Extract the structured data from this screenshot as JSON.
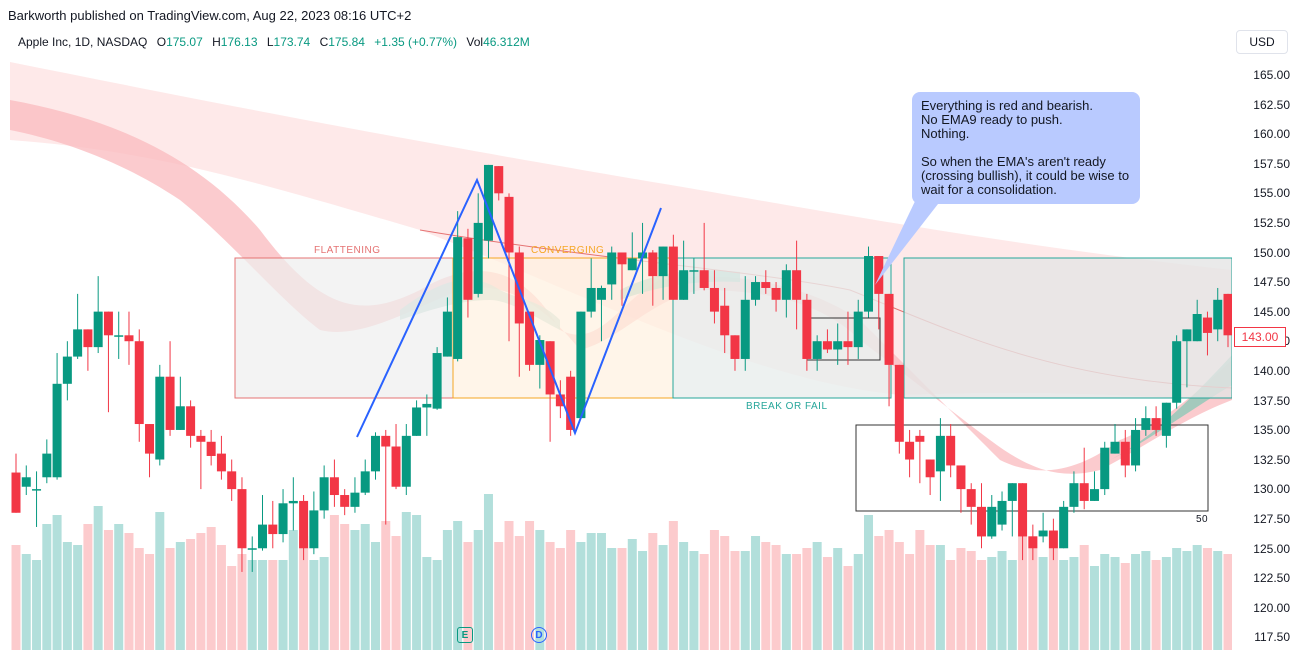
{
  "header": {
    "publisher": "Barkworth published on TradingView.com, Aug 22, 2023 08:16 UTC+2"
  },
  "symbol": {
    "name": "Apple Inc, 1D, NASDAQ",
    "open_label": "O",
    "open": "175.07",
    "high_label": "H",
    "high": "176.13",
    "low_label": "L",
    "low": "173.74",
    "close_label": "C",
    "close": "175.84",
    "change": "+1.35 (+0.77%)",
    "vol_label": "Vol",
    "vol": "46.312M"
  },
  "currency": "USD",
  "price_axis": {
    "ticks": [
      "165.00",
      "162.50",
      "160.00",
      "157.50",
      "155.00",
      "152.50",
      "150.00",
      "147.50",
      "145.00",
      "142.50",
      "140.00",
      "137.50",
      "135.00",
      "132.50",
      "130.00",
      "127.50",
      "125.00",
      "122.50",
      "120.00",
      "117.50"
    ],
    "current_price": "143.00"
  },
  "annotations": {
    "flattening": "FLATTENING",
    "converging": "CONVERGING",
    "break_or_fail": "BREAK OR FAIL",
    "box_value": "50",
    "callout_line1": "Everything is red and bearish.",
    "callout_line2": "No EMA9 ready to push.",
    "callout_line3": "Nothing.",
    "callout_line4": "So when the EMA's aren't ready (crossing bullish), it could be wise to wait for a consolidation."
  },
  "markers": {
    "earnings": "E",
    "dividend": "D"
  },
  "colors": {
    "up": "#089981",
    "down": "#f23645",
    "up_volume": "#b2dfdb",
    "down_volume": "#fccbcd",
    "callout": "#b9caff",
    "trendline": "#2962ff"
  },
  "chart_data": {
    "type": "candlestick",
    "price_range": [
      116.5,
      166.5
    ],
    "candles": [
      [
        131.4,
        128.0,
        133.0,
        130.2
      ],
      [
        130.2,
        131.0,
        132.0,
        129.5
      ],
      [
        130.0,
        130.0,
        131.5,
        126.8
      ],
      [
        131.0,
        133.0,
        134.2,
        130.5
      ],
      [
        131.0,
        138.9,
        141.5,
        130.8
      ],
      [
        138.9,
        141.2,
        142.5,
        137.5
      ],
      [
        141.2,
        143.5,
        146.5,
        141.0
      ],
      [
        143.5,
        142.0,
        143.0,
        140.0
      ],
      [
        142.0,
        145.0,
        148.0,
        141.5
      ],
      [
        145.0,
        143.0,
        144.8,
        136.5
      ],
      [
        143.0,
        143.0,
        145.0,
        141.0
      ],
      [
        143.0,
        142.5,
        145.0,
        140.5
      ],
      [
        142.5,
        135.5,
        143.5,
        134.0
      ],
      [
        135.5,
        133.0,
        135.0,
        131.0
      ],
      [
        132.5,
        139.5,
        140.5,
        132.0
      ],
      [
        139.5,
        135.0,
        142.5,
        134.5
      ],
      [
        135.0,
        137.0,
        139.5,
        135.0
      ],
      [
        137.0,
        134.5,
        137.5,
        133.5
      ],
      [
        134.5,
        134.0,
        135.0,
        130.0
      ],
      [
        134.0,
        132.8,
        135.0,
        132.0
      ],
      [
        133.0,
        131.5,
        134.5,
        130.8
      ],
      [
        131.5,
        130.0,
        132.5,
        129.0
      ],
      [
        130.0,
        125.0,
        131.0,
        123.0
      ],
      [
        125.0,
        125.0,
        126.0,
        123.0
      ],
      [
        125.0,
        127.0,
        129.5,
        124.8
      ],
      [
        127.0,
        126.2,
        129.0,
        125.0
      ],
      [
        126.2,
        128.8,
        130.0,
        125.5
      ],
      [
        128.8,
        129.0,
        131.0,
        126.5
      ],
      [
        129.0,
        125.0,
        129.5,
        124.0
      ],
      [
        125.0,
        128.2,
        129.8,
        124.5
      ],
      [
        128.2,
        131.0,
        132.0,
        127.5
      ],
      [
        131.0,
        129.5,
        132.5,
        128.5
      ],
      [
        129.5,
        128.5,
        130.0,
        127.8
      ],
      [
        128.5,
        129.7,
        131.0,
        128.0
      ],
      [
        129.7,
        131.5,
        132.5,
        129.5
      ],
      [
        131.5,
        134.5,
        134.8,
        130.8
      ],
      [
        134.5,
        133.6,
        135.0,
        127.0
      ],
      [
        133.6,
        130.2,
        135.5,
        130.0
      ],
      [
        130.2,
        134.5,
        135.5,
        129.5
      ],
      [
        134.5,
        136.9,
        137.5,
        134.5
      ],
      [
        136.9,
        137.2,
        138.0,
        134.5
      ],
      [
        136.8,
        141.5,
        142.0,
        136.7
      ],
      [
        141.2,
        145.0,
        146.2,
        141.2
      ],
      [
        141.0,
        151.3,
        153.5,
        140.8
      ],
      [
        151.2,
        146.0,
        152.0,
        144.5
      ],
      [
        146.5,
        152.5,
        155.0,
        146.2
      ],
      [
        151.0,
        157.4,
        157.0,
        149.5
      ],
      [
        157.3,
        155.0,
        154.0,
        154.4
      ],
      [
        154.7,
        150.0,
        155.0,
        142.5
      ],
      [
        150.0,
        144.0,
        150.5,
        139.5
      ],
      [
        145.0,
        140.5,
        143.0,
        140.0
      ],
      [
        140.5,
        142.6,
        143.0,
        138.5
      ],
      [
        142.5,
        138.0,
        141.5,
        134.0
      ],
      [
        138.0,
        137.0,
        139.2,
        136.0
      ],
      [
        139.5,
        135.0,
        140.0,
        134.5
      ],
      [
        136.0,
        145.0,
        144.5,
        139.5
      ],
      [
        145.0,
        147.0,
        149.5,
        144.5
      ],
      [
        146.0,
        147.0,
        147.2,
        142.5
      ],
      [
        147.3,
        150.0,
        150.5,
        146.0
      ],
      [
        150.0,
        149.0,
        147.5,
        145.5
      ],
      [
        148.5,
        149.5,
        151.7,
        149.5
      ],
      [
        149.5,
        150.0,
        152.5,
        146.5
      ],
      [
        150.0,
        148.0,
        150.2,
        145.5
      ],
      [
        148.0,
        150.5,
        150.5,
        146.0
      ],
      [
        150.5,
        146.0,
        151.5,
        146.0
      ],
      [
        146.0,
        148.5,
        151.0,
        147.5
      ],
      [
        148.5,
        148.5,
        149.5,
        146.5
      ],
      [
        148.5,
        147.0,
        152.5,
        146.8
      ],
      [
        147.0,
        145.0,
        148.5,
        144.0
      ],
      [
        145.5,
        143.0,
        147.0,
        141.5
      ],
      [
        143.0,
        141.0,
        142.5,
        140.0
      ],
      [
        141.0,
        146.0,
        148.0,
        140.0
      ],
      [
        146.0,
        147.5,
        148.0,
        145.5
      ],
      [
        147.5,
        147.0,
        148.5,
        146.5
      ],
      [
        147.0,
        146.0,
        147.5,
        145.0
      ],
      [
        146.0,
        148.5,
        149.0,
        144.5
      ],
      [
        148.5,
        146.0,
        151.0,
        143.5
      ],
      [
        146.0,
        141.0,
        146.5,
        140.0
      ],
      [
        141.0,
        142.5,
        143.0,
        140.0
      ],
      [
        142.5,
        141.8,
        143.5,
        141.5
      ],
      [
        141.8,
        142.5,
        144.0,
        140.5
      ],
      [
        142.5,
        142.0,
        145.0,
        140.5
      ],
      [
        142.0,
        145.0,
        146.0,
        141.0
      ],
      [
        145.0,
        149.7,
        150.5,
        144.5
      ],
      [
        149.7,
        146.5,
        146.0,
        143.5
      ],
      [
        146.5,
        140.5,
        144.5,
        137.0
      ],
      [
        140.5,
        134.0,
        140.0,
        133.0
      ],
      [
        134.0,
        132.5,
        135.0,
        131.0
      ],
      [
        134.5,
        134.0,
        135.0,
        130.5
      ],
      [
        132.5,
        131.0,
        132.5,
        129.5
      ],
      [
        131.5,
        134.5,
        136.0,
        129.0
      ],
      [
        134.5,
        132.0,
        135.5,
        131.0
      ],
      [
        132.0,
        130.0,
        131.5,
        128.0
      ],
      [
        130.0,
        128.5,
        130.5,
        127.0
      ],
      [
        128.5,
        126.0,
        130.5,
        125.0
      ],
      [
        126.0,
        128.5,
        129.5,
        125.8
      ],
      [
        127.0,
        129.0,
        129.8,
        126.5
      ],
      [
        129.0,
        130.5,
        130.0,
        126.0
      ],
      [
        130.5,
        126.0,
        130.5,
        124.0
      ],
      [
        126.0,
        125.0,
        127.0,
        124.0
      ],
      [
        126.0,
        126.5,
        128.0,
        125.5
      ],
      [
        126.5,
        125.0,
        127.5,
        124.0
      ],
      [
        125.0,
        128.5,
        129.0,
        125.5
      ],
      [
        128.5,
        130.5,
        131.5,
        128.0
      ],
      [
        130.5,
        129.0,
        133.5,
        128.3
      ],
      [
        129.0,
        130.0,
        131.5,
        129.0
      ],
      [
        130.0,
        133.5,
        134.0,
        129.5
      ],
      [
        133.0,
        134.0,
        135.5,
        133.0
      ],
      [
        134.0,
        132.0,
        135.0,
        131.0
      ],
      [
        132.0,
        135.0,
        136.0,
        131.5
      ],
      [
        135.0,
        136.0,
        137.0,
        134.5
      ],
      [
        136.0,
        135.0,
        137.0,
        134.5
      ],
      [
        134.5,
        137.3,
        137.0,
        133.5
      ],
      [
        137.3,
        142.5,
        143.0,
        136.8
      ],
      [
        142.5,
        143.5,
        143.5,
        138.6
      ],
      [
        142.5,
        144.8,
        146.0,
        142.5
      ],
      [
        144.5,
        143.2,
        145.0,
        141.3
      ],
      [
        143.5,
        146.0,
        147.0,
        142.5
      ],
      [
        146.5,
        143.0,
        145.0,
        142.0
      ]
    ],
    "volumes_relative": [
      0.35,
      0.32,
      0.3,
      0.42,
      0.45,
      0.36,
      0.35,
      0.42,
      0.48,
      0.4,
      0.42,
      0.39,
      0.34,
      0.32,
      0.46,
      0.34,
      0.36,
      0.37,
      0.39,
      0.41,
      0.35,
      0.28,
      0.32,
      0.3,
      0.3,
      0.3,
      0.3,
      0.4,
      0.38,
      0.3,
      0.31,
      0.45,
      0.42,
      0.4,
      0.42,
      0.36,
      0.43,
      0.38,
      0.46,
      0.45,
      0.31,
      0.3,
      0.4,
      0.43,
      0.36,
      0.4,
      0.52,
      0.36,
      0.43,
      0.38,
      0.43,
      0.4,
      0.36,
      0.34,
      0.4,
      0.36,
      0.39,
      0.39,
      0.34,
      0.34,
      0.37,
      0.33,
      0.39,
      0.35,
      0.43,
      0.36,
      0.33,
      0.32,
      0.4,
      0.38,
      0.33,
      0.33,
      0.38,
      0.36,
      0.35,
      0.32,
      0.32,
      0.34,
      0.36,
      0.31,
      0.34,
      0.28,
      0.32,
      0.45,
      0.38,
      0.4,
      0.36,
      0.32,
      0.4,
      0.35,
      0.35,
      0.3,
      0.34,
      0.33,
      0.3,
      0.31,
      0.33,
      0.3,
      0.38,
      0.38,
      0.31,
      0.34,
      0.3,
      0.31,
      0.35,
      0.28,
      0.32,
      0.31,
      0.29,
      0.32,
      0.33,
      0.3,
      0.31,
      0.34,
      0.33,
      0.35,
      0.34,
      0.33,
      0.32,
      0.31
    ]
  }
}
